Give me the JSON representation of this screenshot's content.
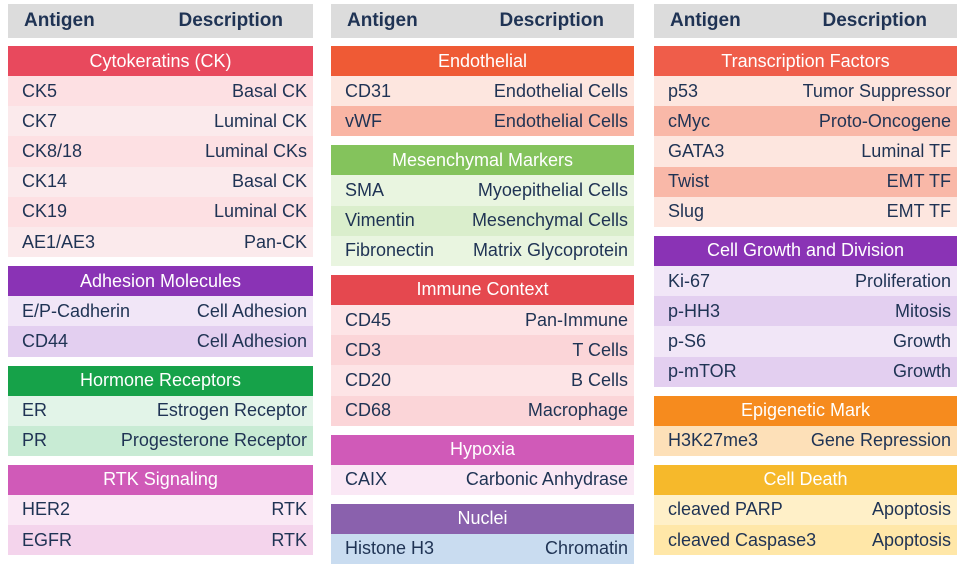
{
  "columns": [
    {
      "header": {
        "antigen": "Antigen",
        "description": "Description"
      },
      "groups": [
        {
          "title": "Cytokeratins (CK)",
          "color": "#e8495d",
          "row_colors": [
            "#fde0e3",
            "#fbeaec"
          ],
          "rows": [
            [
              "CK5",
              "Basal CK"
            ],
            [
              "CK7",
              "Luminal CK"
            ],
            [
              "CK8/18",
              "Luminal CKs"
            ],
            [
              "CK14",
              "Basal CK"
            ],
            [
              "CK19",
              "Luminal CK"
            ],
            [
              "AE1/AE3",
              "Pan-CK"
            ]
          ]
        },
        {
          "title": "Adhesion Molecules",
          "color": "#8a33b5",
          "row_colors": [
            "#f1e6f7",
            "#e3cff0"
          ],
          "rows": [
            [
              "E/P-Cadherin",
              "Cell Adhesion"
            ],
            [
              "CD44",
              "Cell Adhesion"
            ]
          ]
        },
        {
          "title": "Hormone Receptors",
          "color": "#16a249",
          "row_colors": [
            "#e2f4e8",
            "#c8ebd4"
          ],
          "rows": [
            [
              "ER",
              "Estrogen Receptor"
            ],
            [
              "PR",
              "Progesterone Receptor"
            ]
          ]
        },
        {
          "title": "RTK Signaling",
          "color": "#d05ab8",
          "row_colors": [
            "#fae8f5",
            "#f4d4ec"
          ],
          "rows": [
            [
              "HER2",
              "RTK"
            ],
            [
              "EGFR",
              "RTK"
            ]
          ]
        }
      ]
    },
    {
      "header": {
        "antigen": "Antigen",
        "description": "Description"
      },
      "groups": [
        {
          "title": "Endothelial",
          "color": "#ef5a35",
          "row_colors": [
            "#fde6df",
            "#f9b5a4"
          ],
          "rows": [
            [
              "CD31",
              "Endothelial Cells"
            ],
            [
              "vWF",
              "Endothelial Cells"
            ]
          ]
        },
        {
          "title": "Mesenchymal Markers",
          "color": "#84c35c",
          "row_colors": [
            "#e9f5e0",
            "#daeecc"
          ],
          "rows": [
            [
              "SMA",
              "Myoepithelial Cells"
            ],
            [
              "Vimentin",
              "Mesenchymal Cells"
            ],
            [
              "Fibronectin",
              "Matrix Glycoprotein"
            ]
          ]
        },
        {
          "title": "Immune Context",
          "color": "#e5484f",
          "row_colors": [
            "#fde4e6",
            "#fbd5d8"
          ],
          "rows": [
            [
              "CD45",
              "Pan-Immune"
            ],
            [
              "CD3",
              "T Cells"
            ],
            [
              "CD20",
              "B Cells"
            ],
            [
              "CD68",
              "Macrophage"
            ]
          ]
        },
        {
          "title": "Hypoxia",
          "color": "#d05ab8",
          "row_colors": [
            "#fae8f5"
          ],
          "rows": [
            [
              "CAIX",
              "Carbonic Anhydrase"
            ]
          ]
        },
        {
          "title": "Nuclei",
          "color": "#8a61ad",
          "row_colors": [
            "#c9dcf0"
          ],
          "rows": [
            [
              "Histone H3",
              "Chromatin"
            ]
          ]
        }
      ]
    },
    {
      "header": {
        "antigen": "Antigen",
        "description": "Description"
      },
      "groups": [
        {
          "title": "Transcription Factors",
          "color": "#ef5d4a",
          "row_colors": [
            "#fde6df",
            "#f9b8a8"
          ],
          "rows": [
            [
              "p53",
              "Tumor Suppressor"
            ],
            [
              "cMyc",
              "Proto-Oncogene"
            ],
            [
              "GATA3",
              "Luminal TF"
            ],
            [
              "Twist",
              "EMT TF"
            ],
            [
              "Slug",
              "EMT TF"
            ]
          ]
        },
        {
          "title": "Cell Growth and Division",
          "color": "#8a33b5",
          "row_colors": [
            "#f1e6f7",
            "#e3cff0"
          ],
          "rows": [
            [
              "Ki-67",
              "Proliferation"
            ],
            [
              "p-HH3",
              "Mitosis"
            ],
            [
              "p-S6",
              "Growth"
            ],
            [
              "p-mTOR",
              "Growth"
            ]
          ]
        },
        {
          "title": "Epigenetic Mark",
          "color": "#f68b1e",
          "row_colors": [
            "#fde0b8"
          ],
          "rows": [
            [
              "H3K27me3",
              "Gene Repression"
            ]
          ]
        },
        {
          "title": "Cell Death",
          "color": "#f6b92b",
          "row_colors": [
            "#fff0c8",
            "#ffe7a8"
          ],
          "rows": [
            [
              "cleaved PARP",
              "Apoptosis"
            ],
            [
              "cleaved Caspase3",
              "Apoptosis"
            ]
          ]
        }
      ]
    }
  ]
}
